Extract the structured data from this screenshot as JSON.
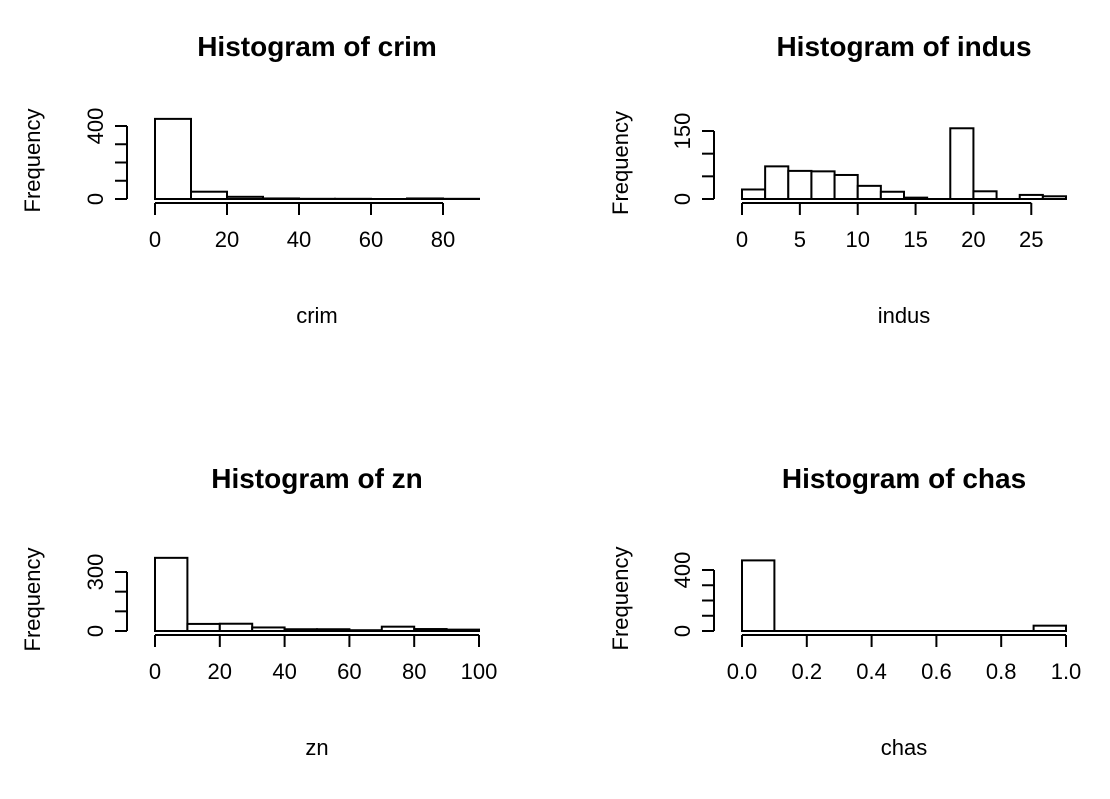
{
  "chart_data": [
    {
      "type": "bar",
      "title": "Histogram of crim",
      "xlabel": "crim",
      "ylabel": "Frequency",
      "xlim": [
        0,
        90
      ],
      "ylim": [
        0,
        400
      ],
      "xticks": [
        0,
        20,
        40,
        60,
        80
      ],
      "xtick_labels": [
        "0",
        "20",
        "40",
        "60",
        "80"
      ],
      "yticks": [
        0,
        100,
        200,
        300,
        400
      ],
      "ytick_labels": [
        "0",
        "",
        "",
        "",
        "400"
      ],
      "bins": [
        [
          0,
          10
        ],
        [
          10,
          20
        ],
        [
          20,
          30
        ],
        [
          30,
          40
        ],
        [
          40,
          50
        ],
        [
          50,
          60
        ],
        [
          60,
          70
        ],
        [
          70,
          80
        ],
        [
          80,
          90
        ]
      ],
      "values": [
        439,
        40,
        12,
        3,
        1,
        1,
        0,
        3,
        1
      ]
    },
    {
      "type": "bar",
      "title": "Histogram of indus",
      "xlabel": "indus",
      "ylabel": "Frequency",
      "xlim": [
        0,
        28
      ],
      "ylim": [
        0,
        150
      ],
      "xticks": [
        0,
        5,
        10,
        15,
        20,
        25
      ],
      "xtick_labels": [
        "0",
        "5",
        "10",
        "15",
        "20",
        "25"
      ],
      "yticks": [
        0,
        50,
        100,
        150
      ],
      "ytick_labels": [
        "0",
        "",
        "",
        "150"
      ],
      "bins": [
        [
          0,
          2
        ],
        [
          2,
          4
        ],
        [
          4,
          6
        ],
        [
          6,
          8
        ],
        [
          8,
          10
        ],
        [
          10,
          12
        ],
        [
          12,
          14
        ],
        [
          14,
          16
        ],
        [
          16,
          18
        ],
        [
          18,
          20
        ],
        [
          20,
          22
        ],
        [
          22,
          24
        ],
        [
          24,
          26
        ],
        [
          26,
          28
        ]
      ],
      "values": [
        21,
        72,
        62,
        61,
        53,
        29,
        16,
        3,
        0,
        156,
        17,
        0,
        9,
        6
      ]
    },
    {
      "type": "bar",
      "title": "Histogram of zn",
      "xlabel": "zn",
      "ylabel": "Frequency",
      "xlim": [
        0,
        100
      ],
      "ylim": [
        0,
        300
      ],
      "xticks": [
        0,
        20,
        40,
        60,
        80,
        100
      ],
      "xtick_labels": [
        "0",
        "20",
        "40",
        "60",
        "80",
        "100"
      ],
      "yticks": [
        0,
        100,
        200,
        300
      ],
      "ytick_labels": [
        "0",
        "",
        "",
        "300"
      ],
      "bins": [
        [
          0,
          10
        ],
        [
          10,
          20
        ],
        [
          20,
          30
        ],
        [
          30,
          40
        ],
        [
          40,
          50
        ],
        [
          50,
          60
        ],
        [
          60,
          70
        ],
        [
          70,
          80
        ],
        [
          80,
          90
        ],
        [
          90,
          100
        ]
      ],
      "values": [
        372,
        36,
        37,
        18,
        9,
        9,
        4,
        22,
        10,
        7
      ]
    },
    {
      "type": "bar",
      "title": "Histogram of chas",
      "xlabel": "chas",
      "ylabel": "Frequency",
      "xlim": [
        0,
        1
      ],
      "ylim": [
        0,
        400
      ],
      "xticks": [
        0,
        0.2,
        0.4,
        0.6,
        0.8,
        1.0
      ],
      "xtick_labels": [
        "0.0",
        "0.2",
        "0.4",
        "0.6",
        "0.8",
        "1.0"
      ],
      "yticks": [
        0,
        100,
        200,
        300,
        400
      ],
      "ytick_labels": [
        "0",
        "",
        "",
        "",
        "400"
      ],
      "bins": [
        [
          0,
          0.1
        ],
        [
          0.1,
          0.2
        ],
        [
          0.2,
          0.3
        ],
        [
          0.3,
          0.4
        ],
        [
          0.4,
          0.5
        ],
        [
          0.5,
          0.6
        ],
        [
          0.6,
          0.7
        ],
        [
          0.7,
          0.8
        ],
        [
          0.8,
          0.9
        ],
        [
          0.9,
          1.0
        ]
      ],
      "values": [
        463,
        0,
        0,
        0,
        0,
        0,
        0,
        0,
        0,
        35
      ]
    }
  ]
}
